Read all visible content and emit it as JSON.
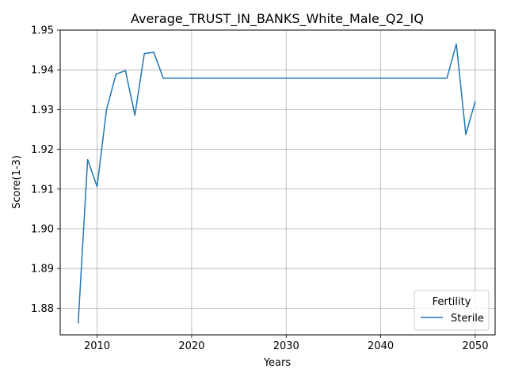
{
  "chart_data": {
    "type": "line",
    "title": "Average_TRUST_IN_BANKS_White_Male_Q2_IQ",
    "xlabel": "Years",
    "ylabel": "Score(1-3)",
    "xlim": [
      2006.1,
      2052.1
    ],
    "ylim": [
      1.8733,
      1.95
    ],
    "xticks": [
      2010,
      2020,
      2030,
      2040,
      2050
    ],
    "xtick_labels": [
      "2010",
      "2020",
      "2030",
      "2040",
      "2050"
    ],
    "yticks": [
      1.88,
      1.89,
      1.9,
      1.91,
      1.92,
      1.93,
      1.94,
      1.95
    ],
    "ytick_labels": [
      "1.88",
      "1.89",
      "1.90",
      "1.91",
      "1.92",
      "1.93",
      "1.94",
      "1.95"
    ],
    "grid": true,
    "legend": {
      "title": "Fertility",
      "placement": "lower-right"
    },
    "series": [
      {
        "name": "Sterile",
        "color": "#1f77b4",
        "x": [
          2008,
          2009,
          2010,
          2011,
          2012,
          2013,
          2014,
          2015,
          2016,
          2017,
          2018,
          2019,
          2020,
          2021,
          2022,
          2023,
          2024,
          2025,
          2026,
          2027,
          2028,
          2029,
          2030,
          2031,
          2032,
          2033,
          2034,
          2035,
          2036,
          2037,
          2038,
          2039,
          2040,
          2041,
          2042,
          2043,
          2044,
          2045,
          2046,
          2047,
          2048,
          2049,
          2050
        ],
        "y": [
          1.8762,
          1.9174,
          1.9106,
          1.93,
          1.9389,
          1.9398,
          1.9286,
          1.9441,
          1.9444,
          1.9379,
          1.9379,
          1.9379,
          1.9379,
          1.9379,
          1.9379,
          1.9379,
          1.9379,
          1.9379,
          1.9379,
          1.9379,
          1.9379,
          1.9379,
          1.9379,
          1.9379,
          1.9379,
          1.9379,
          1.9379,
          1.9379,
          1.9379,
          1.9379,
          1.9379,
          1.9379,
          1.9379,
          1.9379,
          1.9379,
          1.9379,
          1.9379,
          1.9379,
          1.9379,
          1.9379,
          1.9465,
          1.9237,
          1.9321
        ]
      }
    ]
  }
}
